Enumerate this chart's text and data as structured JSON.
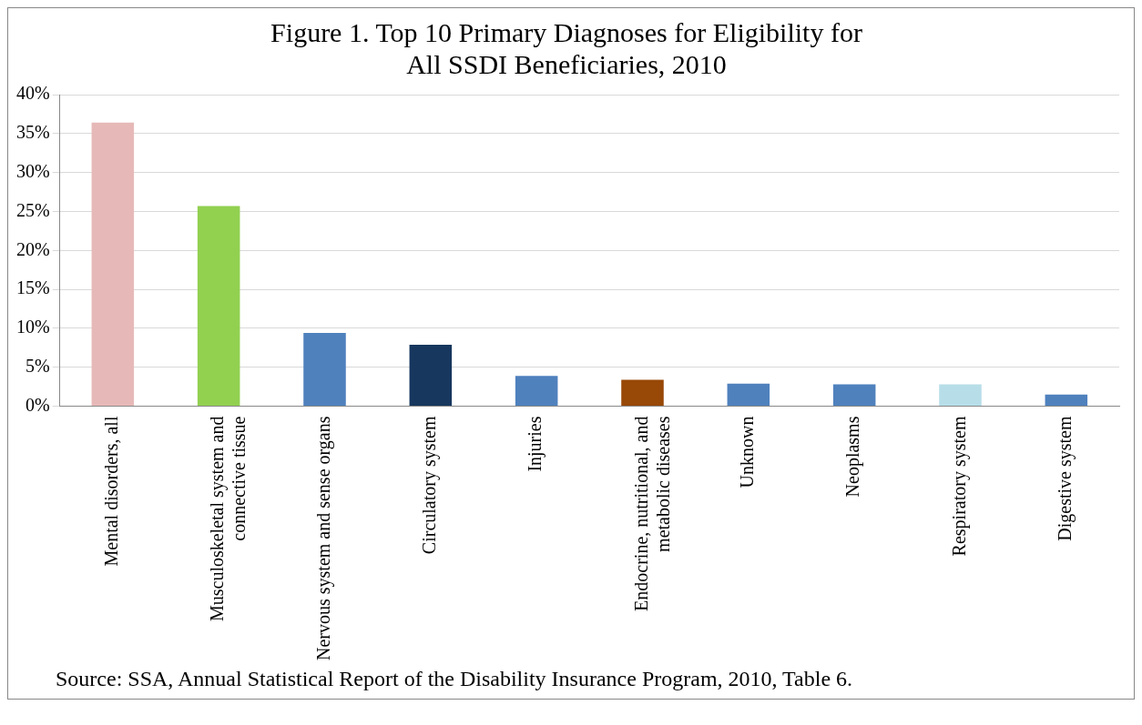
{
  "chart_data": {
    "type": "bar",
    "title": "Figure 1. Top 10 Primary Diagnoses for Eligibility for All SSDI Beneficiaries, 2010",
    "categories": [
      "Mental disorders, all",
      "Musculoskeletal system and connective tissue",
      "Nervous system and sense organs",
      "Circulatory system",
      "Injuries",
      "Endocrine, nutritional, and metabolic diseases",
      "Unknown",
      "Neoplasms",
      "Respiratory system",
      "Digestive system"
    ],
    "values": [
      36.4,
      25.7,
      9.4,
      7.9,
      3.9,
      3.4,
      2.9,
      2.8,
      2.8,
      1.5
    ],
    "colors": [
      "#e6b9b8",
      "#92d050",
      "#4f81bd",
      "#17375e",
      "#4f81bd",
      "#984807",
      "#4f81bd",
      "#4f81bd",
      "#b7dee8",
      "#4f81bd"
    ],
    "ylim": [
      0,
      40
    ],
    "yticks": [
      {
        "value": 0,
        "label": "0%"
      },
      {
        "value": 5,
        "label": "5%"
      },
      {
        "value": 10,
        "label": "10%"
      },
      {
        "value": 15,
        "label": "15%"
      },
      {
        "value": 20,
        "label": "20%"
      },
      {
        "value": 25,
        "label": "25%"
      },
      {
        "value": 30,
        "label": "30%"
      },
      {
        "value": 35,
        "label": "35%"
      },
      {
        "value": 40,
        "label": "40%"
      }
    ],
    "grid": "y",
    "legend": false,
    "annotations": [
      "Source: SSA, Annual Statistical Report of the Disability Insurance Program, 2010, Table 6."
    ]
  }
}
